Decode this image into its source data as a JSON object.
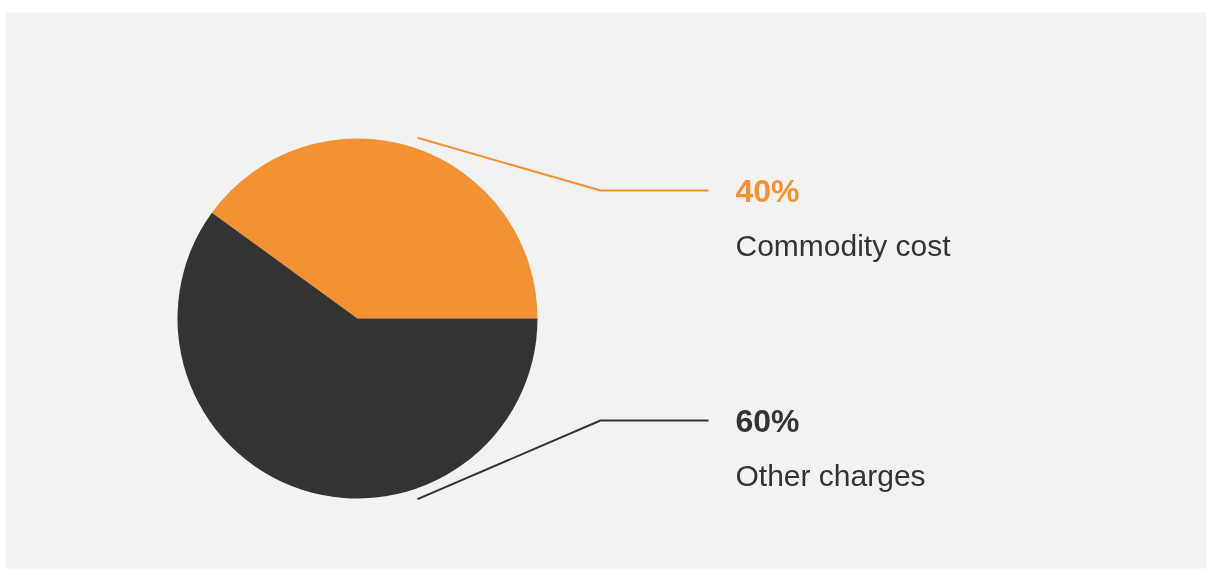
{
  "chart_data": {
    "type": "pie",
    "categories": [
      "Commodity cost",
      "Other charges"
    ],
    "values": [
      40,
      60
    ],
    "colors": [
      "#f39233",
      "#333333"
    ],
    "value_labels": [
      "40%",
      "60%"
    ]
  }
}
